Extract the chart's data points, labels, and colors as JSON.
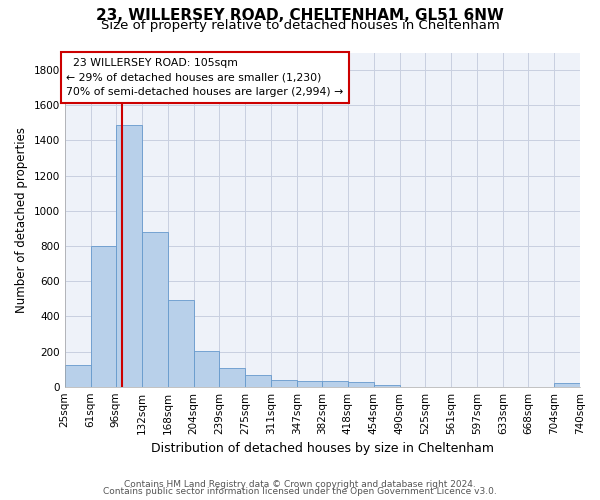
{
  "title_line1": "23, WILLERSEY ROAD, CHELTENHAM, GL51 6NW",
  "title_line2": "Size of property relative to detached houses in Cheltenham",
  "xlabel": "Distribution of detached houses by size in Cheltenham",
  "ylabel": "Number of detached properties",
  "footer_line1": "Contains HM Land Registry data © Crown copyright and database right 2024.",
  "footer_line2": "Contains public sector information licensed under the Open Government Licence v3.0.",
  "bar_lefts": [
    25,
    61,
    96,
    132,
    168,
    204,
    239,
    275,
    311,
    347,
    382,
    418,
    454,
    490,
    525,
    561,
    597,
    633,
    668,
    704
  ],
  "bar_rights": [
    61,
    96,
    132,
    168,
    204,
    239,
    275,
    311,
    347,
    382,
    418,
    454,
    490,
    525,
    561,
    597,
    633,
    668,
    704,
    740
  ],
  "bar_heights": [
    125,
    800,
    1490,
    880,
    490,
    205,
    105,
    65,
    40,
    35,
    30,
    25,
    10,
    0,
    0,
    0,
    0,
    0,
    0,
    20
  ],
  "bar_color": "#b8d0ea",
  "bar_edgecolor": "#6699cc",
  "property_size": 105,
  "vline_color": "#cc0000",
  "annotation_text": "  23 WILLERSEY ROAD: 105sqm\n← 29% of detached houses are smaller (1,230)\n70% of semi-detached houses are larger (2,994) →",
  "annotation_box_color": "#ffffff",
  "annotation_box_edgecolor": "#cc0000",
  "ylim": [
    0,
    1900
  ],
  "yticks": [
    0,
    200,
    400,
    600,
    800,
    1000,
    1200,
    1400,
    1600,
    1800
  ],
  "xtick_labels": [
    "25sqm",
    "61sqm",
    "96sqm",
    "132sqm",
    "168sqm",
    "204sqm",
    "239sqm",
    "275sqm",
    "311sqm",
    "347sqm",
    "382sqm",
    "418sqm",
    "454sqm",
    "490sqm",
    "525sqm",
    "561sqm",
    "597sqm",
    "633sqm",
    "668sqm",
    "704sqm",
    "740sqm"
  ],
  "background_color": "#ffffff",
  "plot_bg_color": "#eef2f9",
  "grid_color": "#c8cfe0"
}
